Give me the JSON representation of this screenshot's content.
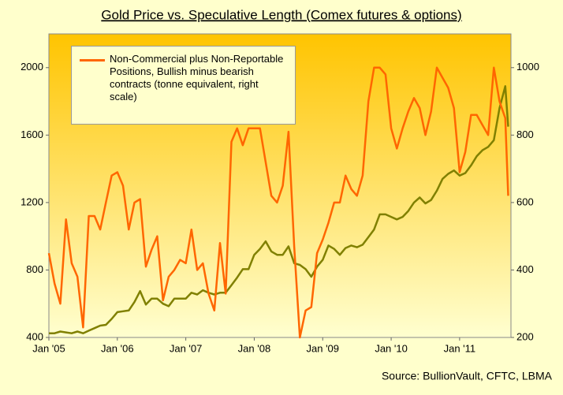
{
  "chart_data": {
    "type": "line",
    "title": "Gold Price vs. Speculative Length (Comex futures & options)",
    "legend_text": "Non-Commercial plus Non-Reportable Positions, Bullish minus bearish contracts (tonne equivalent, right scale)",
    "source": "Source: BullionVault, CFTC, LBMA",
    "x": [
      2005,
      2005.083,
      2005.167,
      2005.25,
      2005.333,
      2005.417,
      2005.5,
      2005.583,
      2005.667,
      2005.75,
      2005.833,
      2005.917,
      2006,
      2006.083,
      2006.167,
      2006.25,
      2006.333,
      2006.417,
      2006.5,
      2006.583,
      2006.667,
      2006.75,
      2006.833,
      2006.917,
      2007,
      2007.083,
      2007.167,
      2007.25,
      2007.333,
      2007.417,
      2007.5,
      2007.583,
      2007.667,
      2007.75,
      2007.833,
      2007.917,
      2008,
      2008.083,
      2008.167,
      2008.25,
      2008.333,
      2008.417,
      2008.5,
      2008.583,
      2008.667,
      2008.75,
      2008.833,
      2008.917,
      2009,
      2009.083,
      2009.167,
      2009.25,
      2009.333,
      2009.417,
      2009.5,
      2009.583,
      2009.667,
      2009.75,
      2009.833,
      2009.917,
      2010,
      2010.083,
      2010.167,
      2010.25,
      2010.333,
      2010.417,
      2010.5,
      2010.583,
      2010.667,
      2010.75,
      2010.833,
      2010.917,
      2011,
      2011.083,
      2011.167,
      2011.25,
      2011.333,
      2011.417,
      2011.5,
      2011.583,
      2011.667,
      2011.71
    ],
    "series": [
      {
        "name": "Gold Price",
        "color": "#808000",
        "axis": "y",
        "values": [
          425,
          425,
          435,
          430,
          425,
          435,
          425,
          440,
          455,
          470,
          475,
          510,
          550,
          555,
          560,
          610,
          675,
          595,
          630,
          630,
          600,
          585,
          630,
          630,
          630,
          665,
          655,
          680,
          665,
          655,
          665,
          665,
          710,
          755,
          805,
          805,
          890,
          925,
          970,
          910,
          890,
          890,
          940,
          840,
          830,
          805,
          760,
          820,
          860,
          945,
          925,
          890,
          930,
          945,
          935,
          950,
          995,
          1040,
          1130,
          1130,
          1115,
          1100,
          1115,
          1150,
          1200,
          1230,
          1195,
          1215,
          1270,
          1340,
          1370,
          1390,
          1360,
          1375,
          1420,
          1475,
          1510,
          1530,
          1570,
          1760,
          1890,
          1650
        ]
      },
      {
        "name": "Speculative Length",
        "color": "#ff6600",
        "axis": "y2",
        "values": [
          450,
          360,
          300,
          550,
          420,
          380,
          230,
          560,
          560,
          520,
          600,
          680,
          690,
          650,
          520,
          600,
          610,
          410,
          460,
          500,
          310,
          380,
          400,
          430,
          420,
          520,
          400,
          420,
          330,
          280,
          480,
          330,
          780,
          820,
          770,
          820,
          820,
          820,
          720,
          620,
          600,
          650,
          810,
          470,
          200,
          280,
          290,
          450,
          490,
          540,
          600,
          600,
          680,
          640,
          620,
          680,
          900,
          1000,
          1000,
          980,
          820,
          760,
          820,
          870,
          910,
          880,
          800,
          870,
          1000,
          970,
          940,
          880,
          690,
          750,
          860,
          860,
          830,
          800,
          1000,
          900,
          850,
          620
        ]
      }
    ],
    "xlim": [
      2005,
      2011.75
    ],
    "xticks": [
      {
        "value": 2005,
        "label": "Jan '05"
      },
      {
        "value": 2006,
        "label": "Jan '06"
      },
      {
        "value": 2007,
        "label": "Jan '07"
      },
      {
        "value": 2008,
        "label": "Jan '08"
      },
      {
        "value": 2009,
        "label": "Jan '09"
      },
      {
        "value": 2010,
        "label": "Jan '10"
      },
      {
        "value": 2011,
        "label": "Jan '11"
      }
    ],
    "ylim": [
      400,
      2200
    ],
    "yticks": [
      400,
      800,
      1200,
      1600,
      2000
    ],
    "y2lim": [
      200,
      1100
    ],
    "y2ticks": [
      200,
      400,
      600,
      800,
      1000
    ]
  }
}
